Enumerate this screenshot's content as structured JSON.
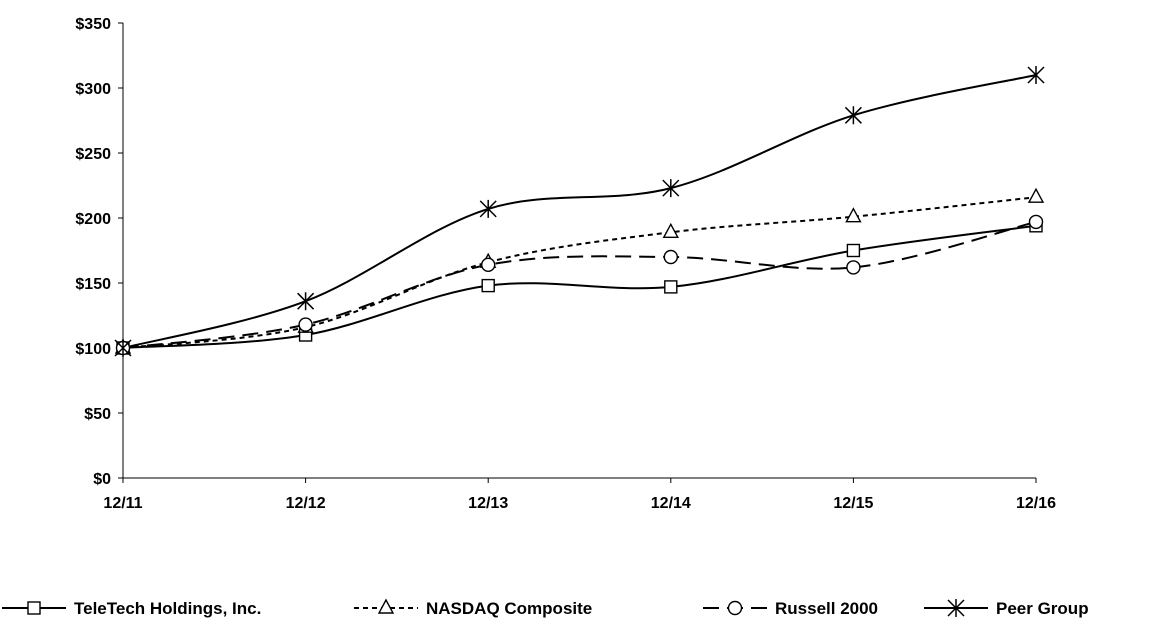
{
  "chart_data": {
    "type": "line",
    "title": "",
    "xlabel": "",
    "ylabel": "",
    "categories": [
      "12/11",
      "12/12",
      "12/13",
      "12/14",
      "12/15",
      "12/16"
    ],
    "y_ticks": [
      "$0",
      "$50",
      "$100",
      "$150",
      "$200",
      "$250",
      "$300",
      "$350"
    ],
    "ylim": [
      0,
      350
    ],
    "grid": false,
    "legend_position": "bottom",
    "series": [
      {
        "name": "TeleTech Holdings, Inc.",
        "values": [
          100,
          110,
          148,
          147,
          175,
          194
        ],
        "line_style": "solid",
        "marker": "square",
        "color": "#000000"
      },
      {
        "name": "NASDAQ Composite",
        "values": [
          100,
          116,
          166,
          189,
          201,
          216
        ],
        "line_style": "dotted",
        "marker": "triangle",
        "color": "#000000"
      },
      {
        "name": "Russell 2000",
        "values": [
          100,
          118,
          164,
          170,
          162,
          197
        ],
        "line_style": "dashed",
        "marker": "circle",
        "color": "#000000"
      },
      {
        "name": "Peer Group",
        "values": [
          100,
          136,
          207,
          223,
          279,
          310
        ],
        "line_style": "solid",
        "marker": "star",
        "color": "#000000"
      }
    ]
  }
}
